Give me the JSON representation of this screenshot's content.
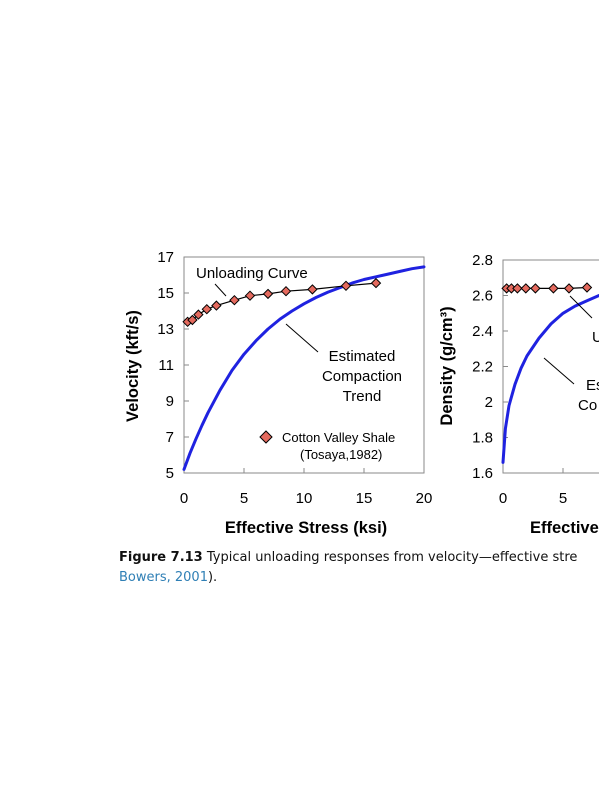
{
  "caption": {
    "label": "Figure 7.13",
    "text": "  Typical unloading responses from velocity—effective stre",
    "ref": "Bowers, 2001",
    "tail": ")."
  },
  "chart_data": [
    {
      "type": "line",
      "xlabel": "Effective Stress (ksi)",
      "ylabel": "Velocity (kft/s)",
      "xlim": [
        0,
        20
      ],
      "ylim": [
        5,
        17
      ],
      "xticks": [
        "0",
        "5",
        "10",
        "15",
        "20"
      ],
      "yticks": [
        "5",
        "7",
        "9",
        "11",
        "13",
        "15",
        "17"
      ],
      "grid": false,
      "legend": "inside bottom-right",
      "annotations": [
        "Unloading Curve",
        "Estimated",
        "Compaction",
        "Trend"
      ],
      "legend_entries": [
        "Cotton Valley Shale",
        "(Tosaya,1982)"
      ],
      "series": [
        {
          "role": "compaction trend",
          "color": "#1f22e0",
          "x": [
            0,
            0.5,
            1,
            1.5,
            2,
            3,
            4,
            5,
            6,
            7,
            8,
            9,
            10,
            11,
            12,
            13,
            14,
            15,
            16,
            17,
            18,
            19,
            20
          ],
          "y": [
            5.2,
            6.1,
            6.9,
            7.65,
            8.35,
            9.6,
            10.7,
            11.6,
            12.35,
            13.0,
            13.55,
            14.0,
            14.4,
            14.75,
            15.05,
            15.3,
            15.55,
            15.75,
            15.9,
            16.05,
            16.2,
            16.35,
            16.45
          ]
        },
        {
          "name": "Cotton Valley Shale",
          "role": "unloading data",
          "color": "#e46a5e",
          "x": [
            0.3,
            0.7,
            1.2,
            1.9,
            2.7,
            4.2,
            5.5,
            7.0,
            8.5,
            10.7,
            13.5,
            16.0
          ],
          "y": [
            13.4,
            13.5,
            13.8,
            14.1,
            14.3,
            14.6,
            14.85,
            14.95,
            15.1,
            15.2,
            15.4,
            15.55
          ]
        }
      ]
    },
    {
      "type": "line",
      "xlabel": "Effective",
      "ylabel": "Density (g/cm³)",
      "xlim": [
        0,
        20
      ],
      "ylim": [
        1.6,
        2.8
      ],
      "xticks": [
        "0",
        "5"
      ],
      "yticks": [
        "1.6",
        "1.8",
        "2",
        "2.2",
        "2.4",
        "2.6",
        "2.8"
      ],
      "grid": false,
      "annotations": [
        "U",
        "Es",
        "Co"
      ],
      "series": [
        {
          "role": "compaction trend",
          "color": "#1f22e0",
          "x": [
            0,
            0.2,
            0.5,
            1,
            1.5,
            2,
            3,
            4,
            5,
            6,
            7,
            8
          ],
          "y": [
            1.66,
            1.85,
            1.98,
            2.1,
            2.19,
            2.26,
            2.36,
            2.44,
            2.5,
            2.54,
            2.57,
            2.6
          ]
        },
        {
          "role": "unloading data",
          "color": "#e46a5e",
          "x": [
            0.3,
            0.7,
            1.2,
            1.9,
            2.7,
            4.2,
            5.5,
            7.0
          ],
          "y": [
            2.64,
            2.64,
            2.64,
            2.64,
            2.64,
            2.64,
            2.64,
            2.645
          ]
        }
      ]
    }
  ]
}
